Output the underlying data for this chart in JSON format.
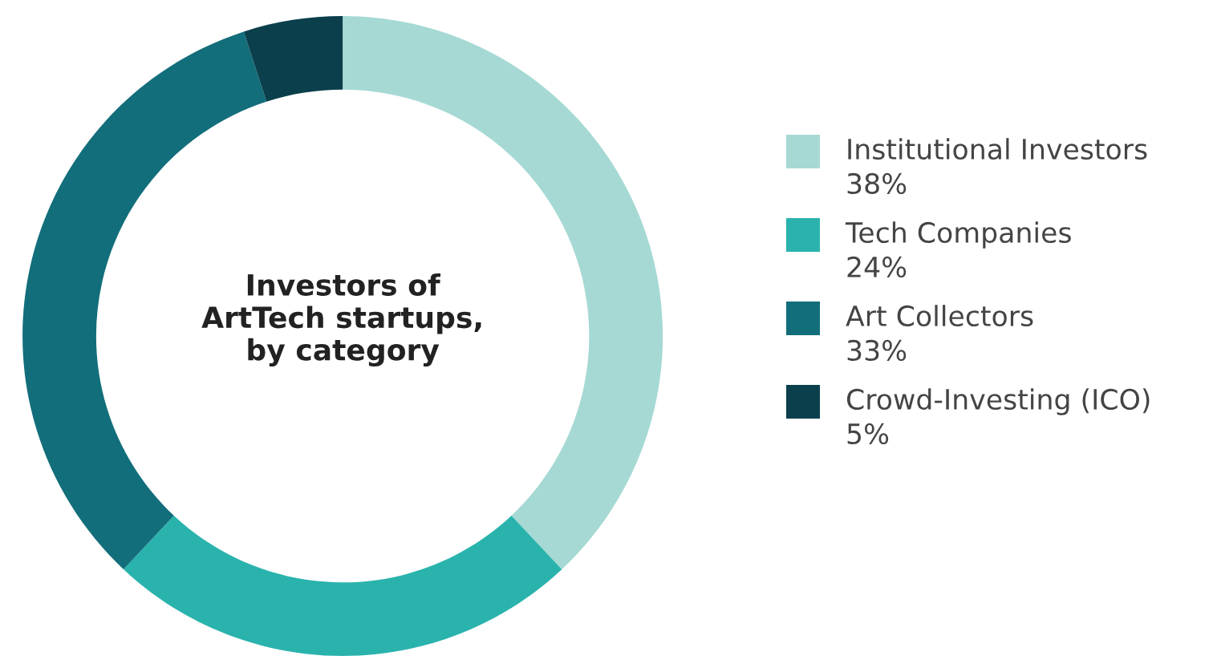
{
  "chart_data": {
    "type": "donut",
    "title": "Investors of\nArtTech startups,\nby category",
    "categories": [
      "Institutional Investors",
      "Tech Companies",
      "Art Collectors",
      "Crowd-Investing (ICO)"
    ],
    "values": [
      38,
      24,
      33,
      5
    ],
    "value_labels": [
      "38%",
      "24%",
      "33%",
      "5%"
    ],
    "colors": [
      "#a6d9d4",
      "#2ab3ad",
      "#126e7a",
      "#0b3f4c"
    ],
    "legend": "right"
  }
}
